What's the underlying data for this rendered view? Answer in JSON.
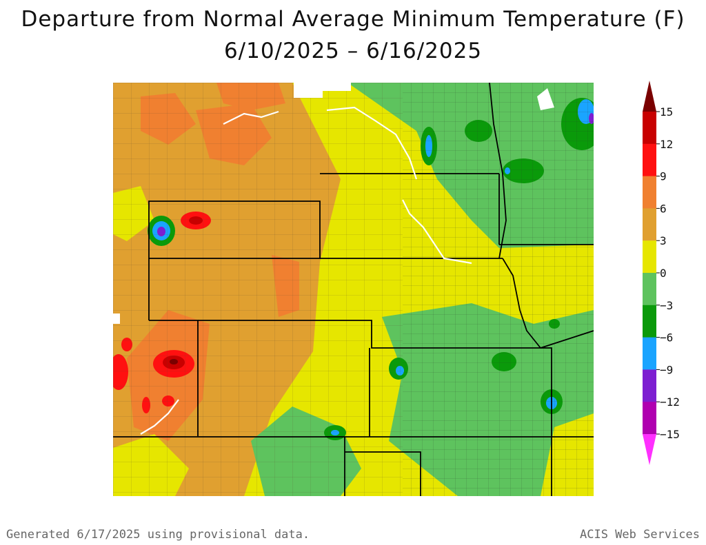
{
  "title": {
    "line1": "Departure from Normal Average Minimum Temperature (F)",
    "line2": "6/10/2025 – 6/16/2025"
  },
  "legend": {
    "ticks": [
      "15",
      "12",
      "9",
      "6",
      "3",
      "0",
      "−3",
      "−6",
      "−9",
      "−12",
      "−15"
    ],
    "band_colors": [
      "#7a0000",
      "#c80000",
      "#ff1010",
      "#f08030",
      "#e0a030",
      "#e6e600",
      "#5ec35e",
      "#0a9a0a",
      "#1aa4ff",
      "#7d1fd1",
      "#b000b0",
      "#ff30ff"
    ]
  },
  "footer": {
    "left": "Generated 6/17/2025 using provisional data.",
    "right": "ACIS Web Services"
  }
}
